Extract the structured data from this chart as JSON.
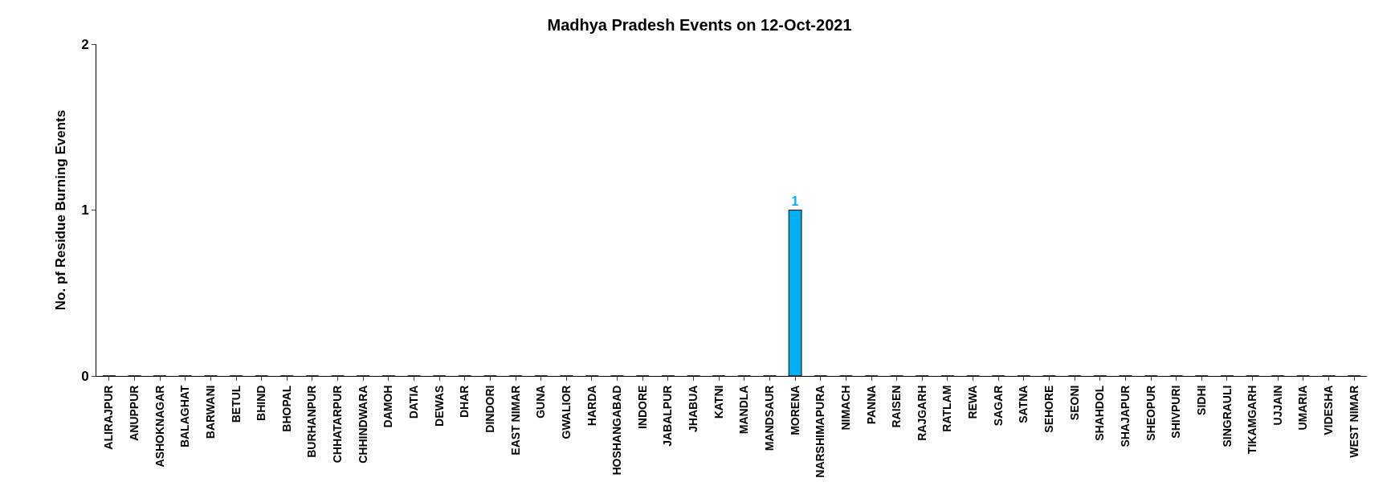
{
  "chart_data": {
    "type": "bar",
    "title": "Madhya Pradesh Events on 12-Oct-2021",
    "ylabel": "No. pf Residue Burning Events",
    "categories": [
      "ALIRAJPUR",
      "ANUPPUR",
      "ASHOKNAGAR",
      "BALAGHAT",
      "BARWANI",
      "BETUL",
      "BHIND",
      "BHOPAL",
      "BURHANPUR",
      "CHHATARPUR",
      "CHHINDWARA",
      "DAMOH",
      "DATIA",
      "DEWAS",
      "DHAR",
      "DINDORI",
      "EAST NIMAR",
      "GUNA",
      "GWALIOR",
      "HARDA",
      "HOSHANGABAD",
      "INDORE",
      "JABALPUR",
      "JHABUA",
      "KATNI",
      "MANDLA",
      "MANDSAUR",
      "MORENA",
      "NARSHIMAPURA",
      "NIMACH",
      "PANNA",
      "RAISEN",
      "RAJGARH",
      "RATLAM",
      "REWA",
      "SAGAR",
      "SATNA",
      "SEHORE",
      "SEONI",
      "SHAHDOL",
      "SHAJAPUR",
      "SHEOPUR",
      "SHIVPURI",
      "SIDHI",
      "SINGRAULI",
      "TIKAMGARH",
      "UJJAIN",
      "UMARIA",
      "VIDESHA",
      "WEST NIMAR"
    ],
    "values": [
      0,
      0,
      0,
      0,
      0,
      0,
      0,
      0,
      0,
      0,
      0,
      0,
      0,
      0,
      0,
      0,
      0,
      0,
      0,
      0,
      0,
      0,
      0,
      0,
      0,
      0,
      0,
      1,
      0,
      0,
      0,
      0,
      0,
      0,
      0,
      0,
      0,
      0,
      0,
      0,
      0,
      0,
      0,
      0,
      0,
      0,
      0,
      0,
      0,
      0
    ],
    "value_labels": [
      null,
      null,
      null,
      null,
      null,
      null,
      null,
      null,
      null,
      null,
      null,
      null,
      null,
      null,
      null,
      null,
      null,
      null,
      null,
      null,
      null,
      null,
      null,
      null,
      null,
      null,
      null,
      "1",
      null,
      null,
      null,
      null,
      null,
      null,
      null,
      null,
      null,
      null,
      null,
      null,
      null,
      null,
      null,
      null,
      null,
      null,
      null,
      null,
      null,
      null
    ],
    "color": "#00b0f0",
    "ylim": [
      0,
      2
    ],
    "yticks": [
      0,
      1,
      2
    ],
    "legend": false
  }
}
